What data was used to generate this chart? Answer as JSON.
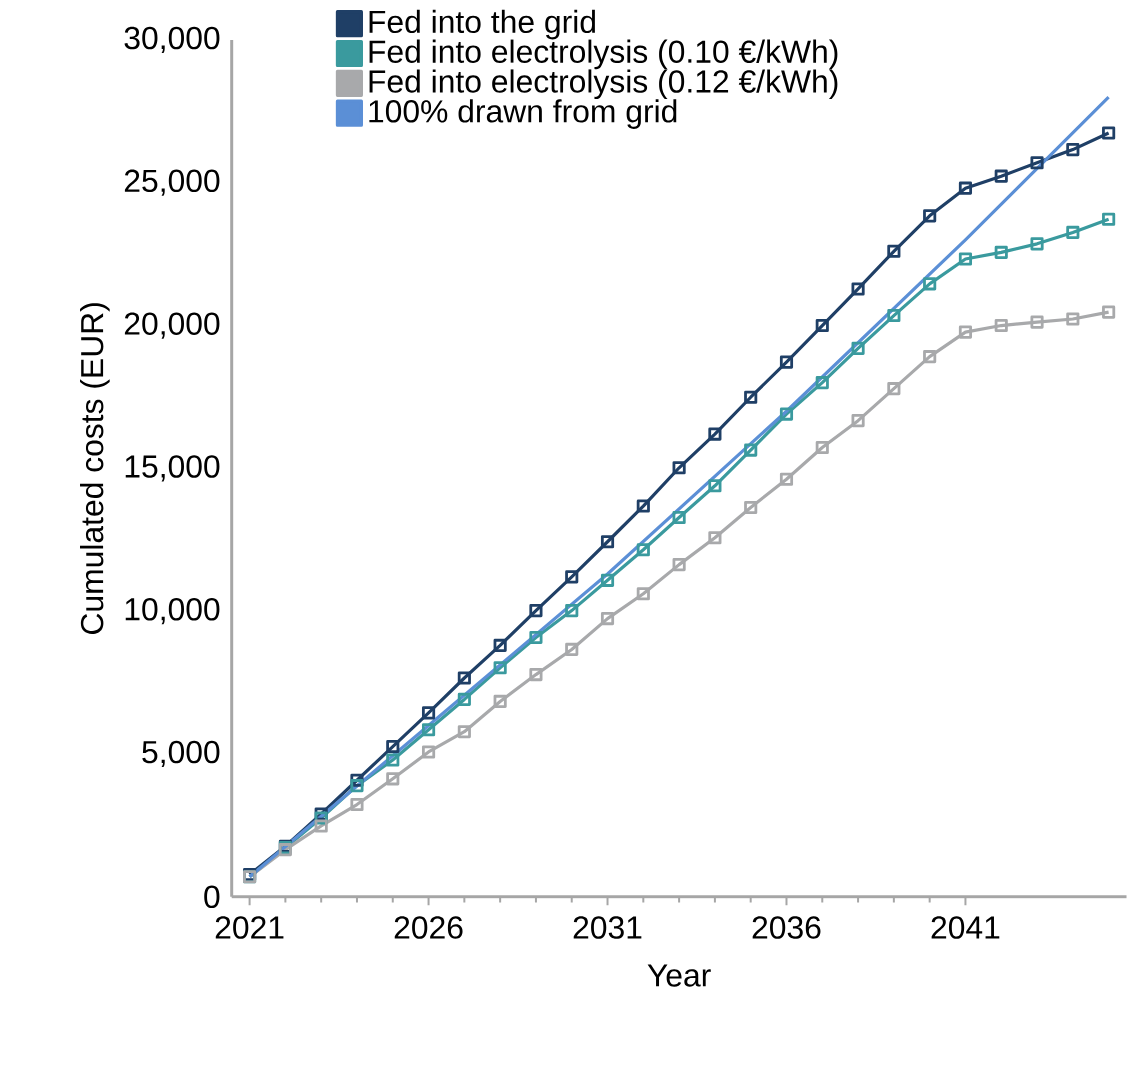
{
  "chart_data": {
    "type": "line",
    "xlabel": "Year",
    "ylabel": "Cumulated costs (EUR)",
    "x": [
      2021,
      2022,
      2023,
      2024,
      2025,
      2026,
      2027,
      2028,
      2029,
      2030,
      2031,
      2032,
      2033,
      2034,
      2035,
      2036,
      2037,
      2038,
      2039,
      2040,
      2041,
      2042,
      2043,
      2044,
      2045
    ],
    "series": [
      {
        "name": "Fed into the grid",
        "color": "#1f3f66",
        "marker": "square",
        "values": [
          780,
          1770,
          2900,
          4080,
          5260,
          6440,
          7660,
          8800,
          10020,
          11200,
          12430,
          13680,
          15020,
          16200,
          17490,
          18720,
          20000,
          21280,
          22600,
          23840,
          24810,
          25230,
          25700,
          26160,
          26740
        ]
      },
      {
        "name": "Fed into electrolysis (0.10 €/kWh)",
        "color": "#3a9a9e",
        "marker": "square",
        "values": [
          700,
          1720,
          2760,
          3890,
          4790,
          5850,
          6910,
          8020,
          9080,
          10020,
          11080,
          12150,
          13280,
          14390,
          15640,
          16900,
          18000,
          19200,
          20350,
          21460,
          22330,
          22560,
          22860,
          23260,
          23720
        ]
      },
      {
        "name": "Fed into electrolysis (0.12 €/kWh)",
        "color": "#a8a9ab",
        "marker": "square",
        "values": [
          700,
          1650,
          2480,
          3230,
          4130,
          5070,
          5780,
          6840,
          7780,
          8660,
          9740,
          10610,
          11630,
          12570,
          13630,
          14620,
          15730,
          16670,
          17790,
          18910,
          19770,
          20000,
          20120,
          20230,
          20470
        ]
      },
      {
        "name": "100% drawn from grid",
        "color": "#5b8fd6",
        "marker": "none",
        "x": [
          2021,
          2026,
          2031,
          2036,
          2041,
          2045
        ],
        "values": [
          700,
          6000,
          11300,
          17000,
          23000,
          28000
        ]
      }
    ],
    "xlim": [
      2020.5,
      2045.5
    ],
    "xticks": [
      2021,
      2026,
      2031,
      2036,
      2041
    ],
    "ylim": [
      0,
      30000
    ],
    "yticks": [
      0,
      {
        "value": 5000,
        "label": "5,000"
      },
      {
        "value": 10000,
        "label": "10,000"
      },
      {
        "value": 15000,
        "label": "15,000"
      },
      {
        "value": 20000,
        "label": "20,000"
      },
      {
        "value": 25000,
        "label": "25,000"
      },
      {
        "value": 30000,
        "label": "30,000"
      }
    ],
    "legend": "top",
    "grid": false
  }
}
